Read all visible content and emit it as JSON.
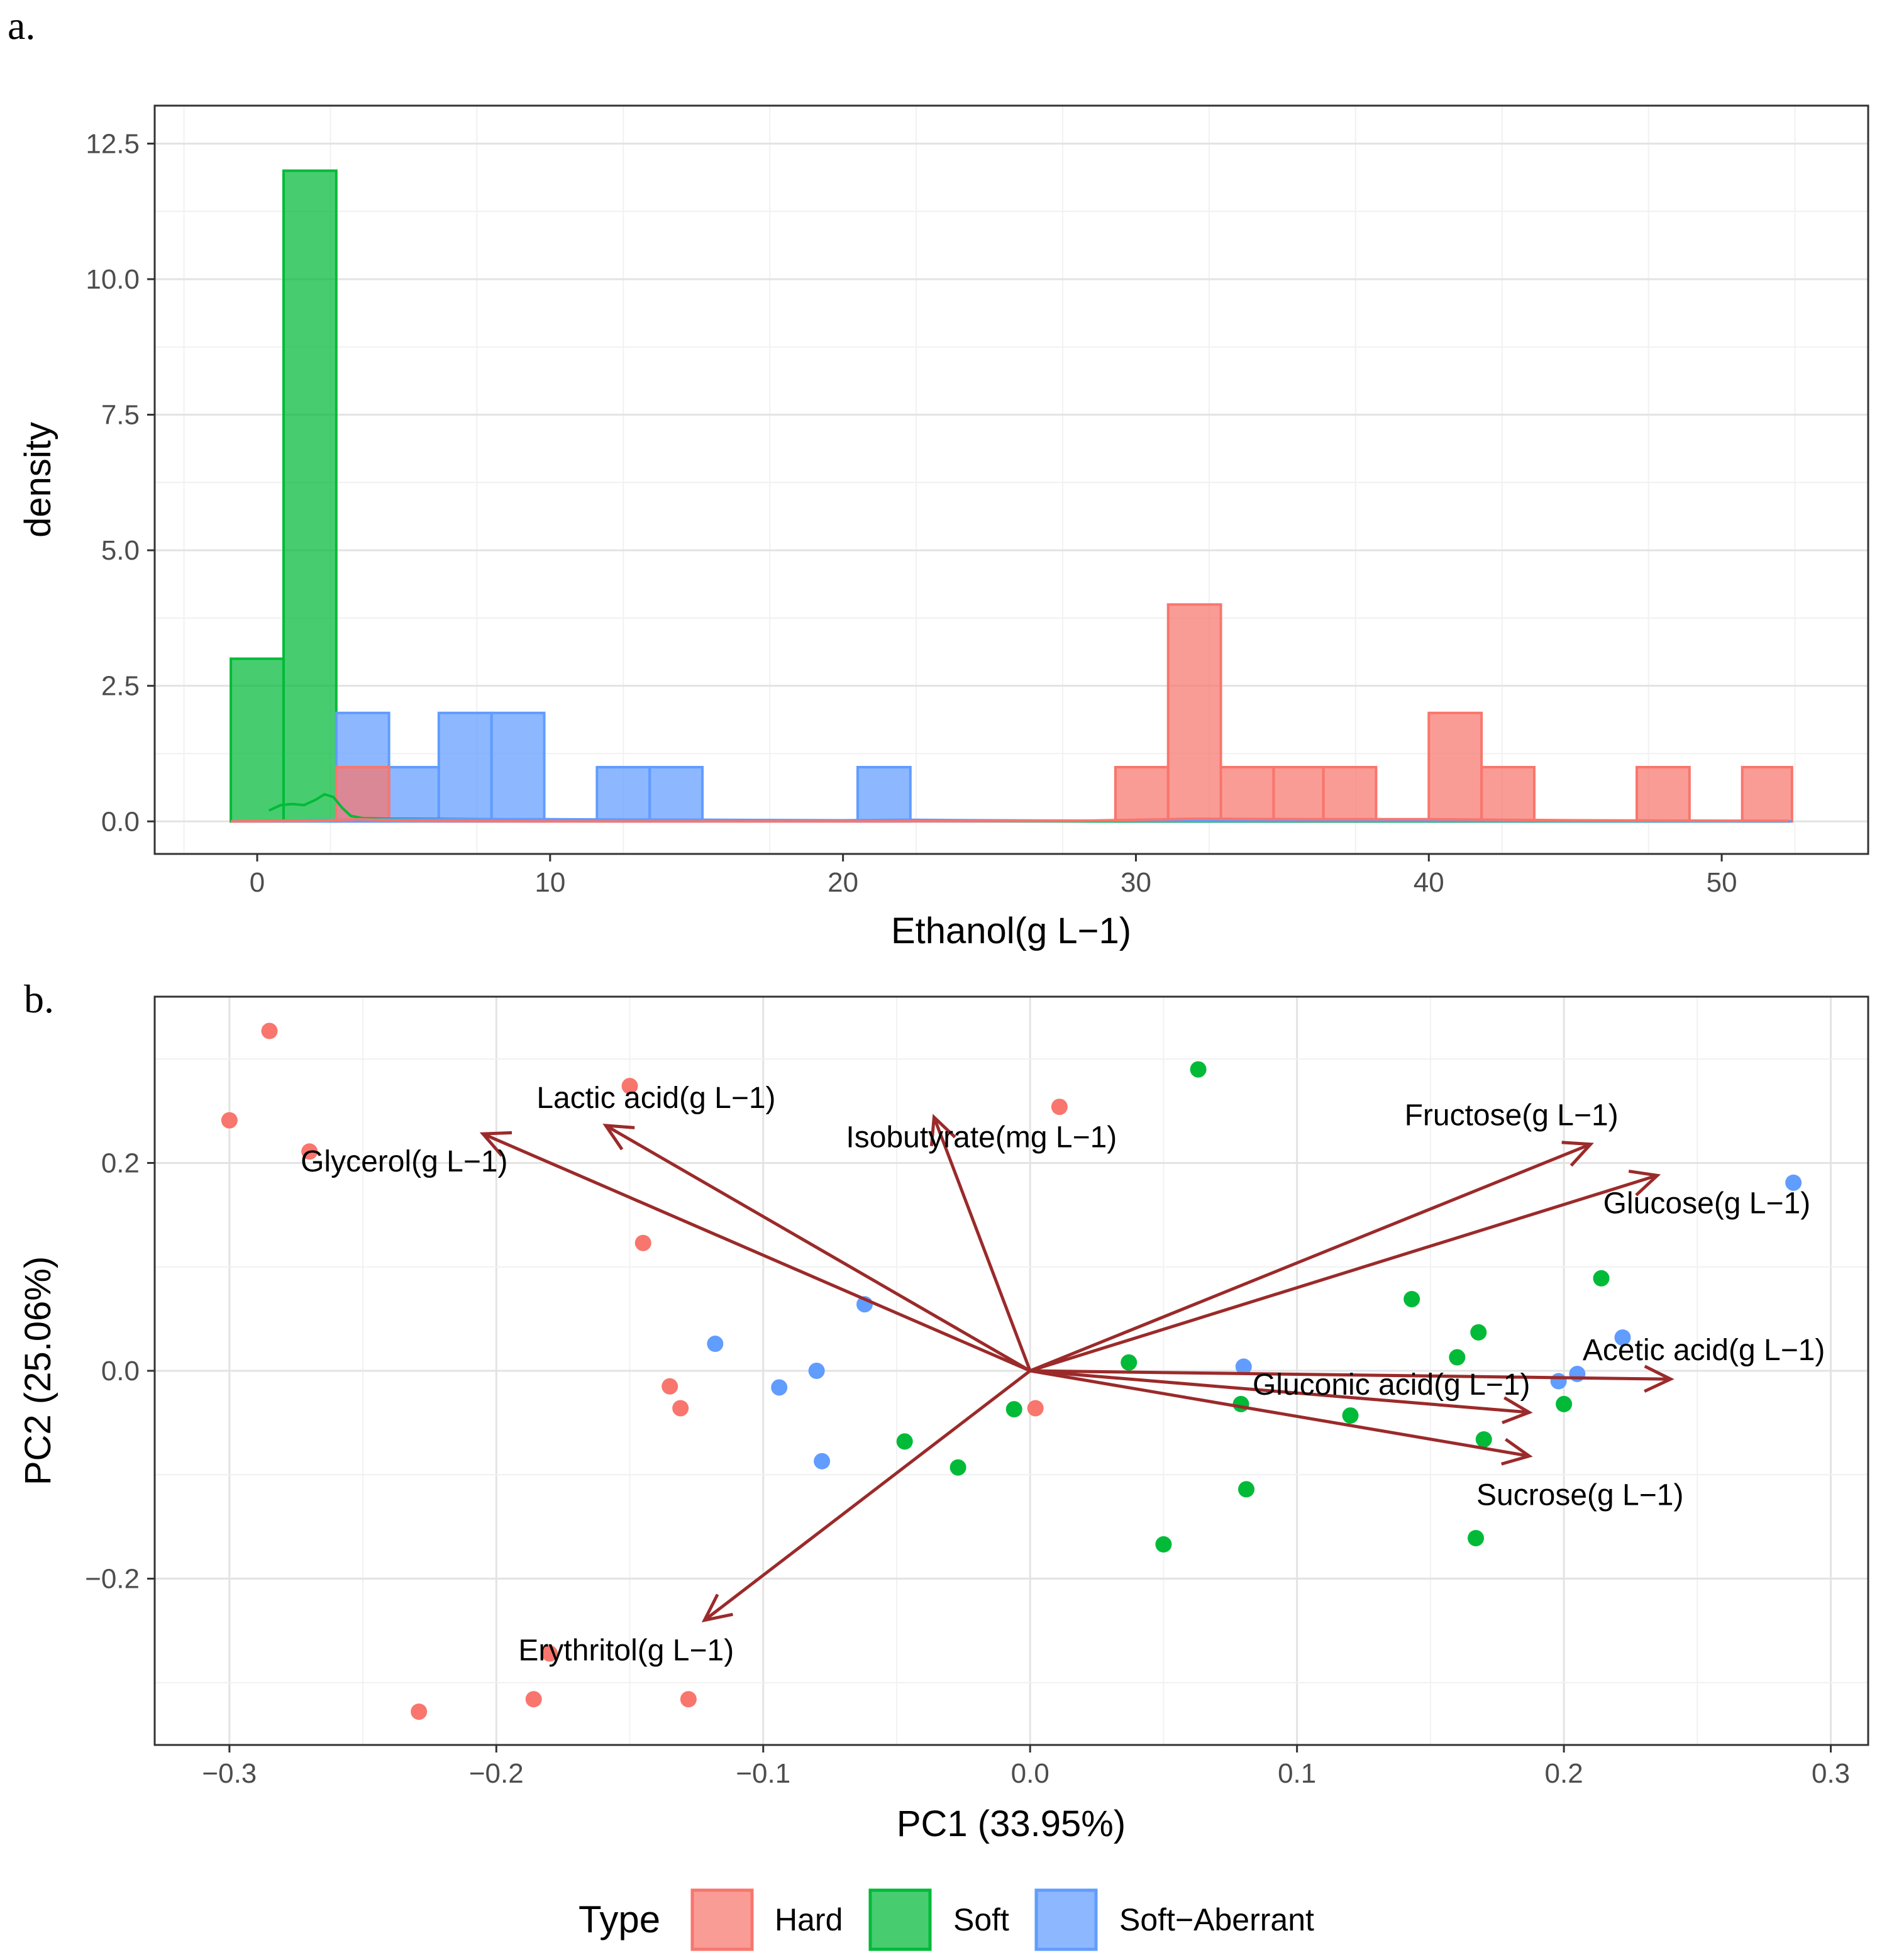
{
  "panels": {
    "a_label": "a.",
    "b_label": "b."
  },
  "colors": {
    "Hard": "#F8766D",
    "Soft": "#00BA38",
    "Soft-Aberrant": "#619CFF",
    "arrow": "#9B2A2A",
    "grid_major": "#e3e3e3",
    "grid_minor": "#f1f1f1"
  },
  "chart_data": [
    {
      "type": "histogram",
      "title": "",
      "xlabel": "Ethanol(g L−1)",
      "ylabel": "density",
      "xlim": [
        -3.5,
        55
      ],
      "ylim": [
        -0.6,
        13.2
      ],
      "xticks": [
        0,
        10,
        20,
        30,
        40,
        50
      ],
      "xtick_labels": [
        "0",
        "10",
        "20",
        "30",
        "40",
        "50"
      ],
      "yticks": [
        0,
        2.5,
        5,
        7.5,
        10,
        12.5
      ],
      "ytick_labels": [
        "0.0",
        "2.5",
        "5.0",
        "7.5",
        "10.0",
        "12.5"
      ],
      "series": [
        {
          "name": "Soft",
          "bins": [
            {
              "x0": -0.9,
              "x1": 0.9,
              "count": 3
            },
            {
              "x0": 0.9,
              "x1": 2.7,
              "count": 12
            }
          ]
        },
        {
          "name": "Soft-Aberrant",
          "bins": [
            {
              "x0": 2.7,
              "x1": 4.5,
              "count": 2
            },
            {
              "x0": 4.5,
              "x1": 6.2,
              "count": 1
            },
            {
              "x0": 6.2,
              "x1": 8.0,
              "count": 2
            },
            {
              "x0": 8.0,
              "x1": 9.8,
              "count": 2
            },
            {
              "x0": 11.6,
              "x1": 13.4,
              "count": 1
            },
            {
              "x0": 13.4,
              "x1": 15.2,
              "count": 1
            },
            {
              "x0": 20.5,
              "x1": 22.3,
              "count": 1
            }
          ]
        },
        {
          "name": "Hard",
          "bins": [
            {
              "x0": 2.7,
              "x1": 4.5,
              "count": 1
            },
            {
              "x0": 29.3,
              "x1": 31.1,
              "count": 1
            },
            {
              "x0": 31.1,
              "x1": 32.9,
              "count": 4
            },
            {
              "x0": 32.9,
              "x1": 34.7,
              "count": 1
            },
            {
              "x0": 34.7,
              "x1": 36.4,
              "count": 1
            },
            {
              "x0": 36.4,
              "x1": 38.2,
              "count": 1
            },
            {
              "x0": 40.0,
              "x1": 41.8,
              "count": 2
            },
            {
              "x0": 41.8,
              "x1": 43.6,
              "count": 1
            },
            {
              "x0": 47.1,
              "x1": 48.9,
              "count": 1
            },
            {
              "x0": 50.7,
              "x1": 52.4,
              "count": 1
            }
          ]
        }
      ],
      "density_curves": [
        {
          "name": "Soft",
          "x": [
            0.4,
            0.8,
            1.2,
            1.6,
            2.0,
            2.3,
            2.6,
            2.9,
            3.2,
            3.6,
            4.5,
            6,
            10,
            20,
            30,
            52.3
          ],
          "y": [
            0.2,
            0.3,
            0.32,
            0.3,
            0.4,
            0.5,
            0.45,
            0.25,
            0.1,
            0.06,
            0.05,
            0.05,
            0.03,
            0.01,
            0.0,
            0.0
          ]
        },
        {
          "name": "Soft-Aberrant",
          "x": [
            -0.9,
            3,
            6,
            10,
            15,
            20,
            22,
            25,
            30,
            40,
            52.3
          ],
          "y": [
            0.0,
            0.03,
            0.04,
            0.04,
            0.03,
            0.02,
            0.03,
            0.02,
            0.01,
            0.01,
            0.0
          ]
        },
        {
          "name": "Hard",
          "x": [
            -0.9,
            2,
            3.5,
            5,
            10,
            20,
            28,
            32,
            36,
            40,
            45,
            52.3
          ],
          "y": [
            0.0,
            0.01,
            0.04,
            0.01,
            0.0,
            0.0,
            0.01,
            0.05,
            0.04,
            0.04,
            0.02,
            0.01
          ]
        }
      ]
    },
    {
      "type": "scatter",
      "subtype": "pca-biplot",
      "title": "",
      "xlabel": "PC1 (33.95%)",
      "ylabel": "PC2 (25.06%)",
      "xlim": [
        -0.328,
        0.314
      ],
      "ylim": [
        -0.36,
        0.36
      ],
      "xticks": [
        -0.3,
        -0.2,
        -0.1,
        0.0,
        0.1,
        0.2,
        0.3
      ],
      "xtick_labels": [
        "−0.3",
        "−0.2",
        "−0.1",
        "0.0",
        "0.1",
        "0.2",
        "0.3"
      ],
      "yticks": [
        -0.2,
        0.0,
        0.2
      ],
      "ytick_labels": [
        "−0.2",
        "0.0",
        "0.2"
      ],
      "series": [
        {
          "name": "Hard",
          "points": [
            [
              -0.285,
              0.327
            ],
            [
              -0.3,
              0.241
            ],
            [
              -0.27,
              0.211
            ],
            [
              -0.15,
              0.274
            ],
            [
              -0.145,
              0.123
            ],
            [
              -0.135,
              -0.015
            ],
            [
              -0.131,
              -0.036
            ],
            [
              0.011,
              0.254
            ],
            [
              0.002,
              -0.036
            ],
            [
              -0.229,
              -0.328
            ],
            [
              -0.186,
              -0.316
            ],
            [
              -0.18,
              -0.272
            ],
            [
              -0.128,
              -0.316
            ]
          ]
        },
        {
          "name": "Soft",
          "points": [
            [
              0.063,
              0.29
            ],
            [
              0.143,
              0.069
            ],
            [
              0.168,
              0.037
            ],
            [
              0.16,
              0.013
            ],
            [
              0.214,
              0.089
            ],
            [
              0.037,
              0.008
            ],
            [
              0.079,
              -0.032
            ],
            [
              0.12,
              -0.043
            ],
            [
              0.17,
              -0.066
            ],
            [
              0.2,
              -0.032
            ],
            [
              0.081,
              -0.114
            ],
            [
              0.05,
              -0.167
            ],
            [
              0.167,
              -0.161
            ],
            [
              -0.006,
              -0.037
            ],
            [
              -0.047,
              -0.068
            ],
            [
              -0.027,
              -0.093
            ]
          ]
        },
        {
          "name": "Soft-Aberrant",
          "points": [
            [
              0.286,
              0.181
            ],
            [
              0.222,
              0.032
            ],
            [
              0.205,
              -0.003
            ],
            [
              0.198,
              -0.01
            ],
            [
              0.08,
              0.004
            ],
            [
              -0.062,
              0.064
            ],
            [
              -0.118,
              0.026
            ],
            [
              -0.08,
              0.0
            ],
            [
              -0.094,
              -0.016
            ],
            [
              -0.078,
              -0.087
            ]
          ]
        }
      ],
      "loadings": [
        {
          "name": "Lactic acid(g L−1)",
          "x": -0.159,
          "y": 0.236
        },
        {
          "name": "Glycerol(g L−1)",
          "x": -0.205,
          "y": 0.228
        },
        {
          "name": "Isobutyrate(mg L−1)",
          "x": -0.036,
          "y": 0.244
        },
        {
          "name": "Fructose(g L−1)",
          "x": 0.21,
          "y": 0.218
        },
        {
          "name": "Glucose(g L−1)",
          "x": 0.235,
          "y": 0.188
        },
        {
          "name": "Acetic acid(g L−1)",
          "x": 0.24,
          "y": -0.008
        },
        {
          "name": "Gluconic acid(g L−1)",
          "x": 0.187,
          "y": -0.04
        },
        {
          "name": "Sucrose(g L−1)",
          "x": 0.187,
          "y": -0.082
        },
        {
          "name": "Erythritol(g L−1)",
          "x": -0.122,
          "y": -0.24
        }
      ]
    }
  ],
  "legend": {
    "title": "Type",
    "position": "bottom",
    "entries": [
      "Hard",
      "Soft",
      "Soft-Aberrant"
    ],
    "labels": [
      "Hard",
      "Soft",
      "Soft−Aberrant"
    ]
  }
}
